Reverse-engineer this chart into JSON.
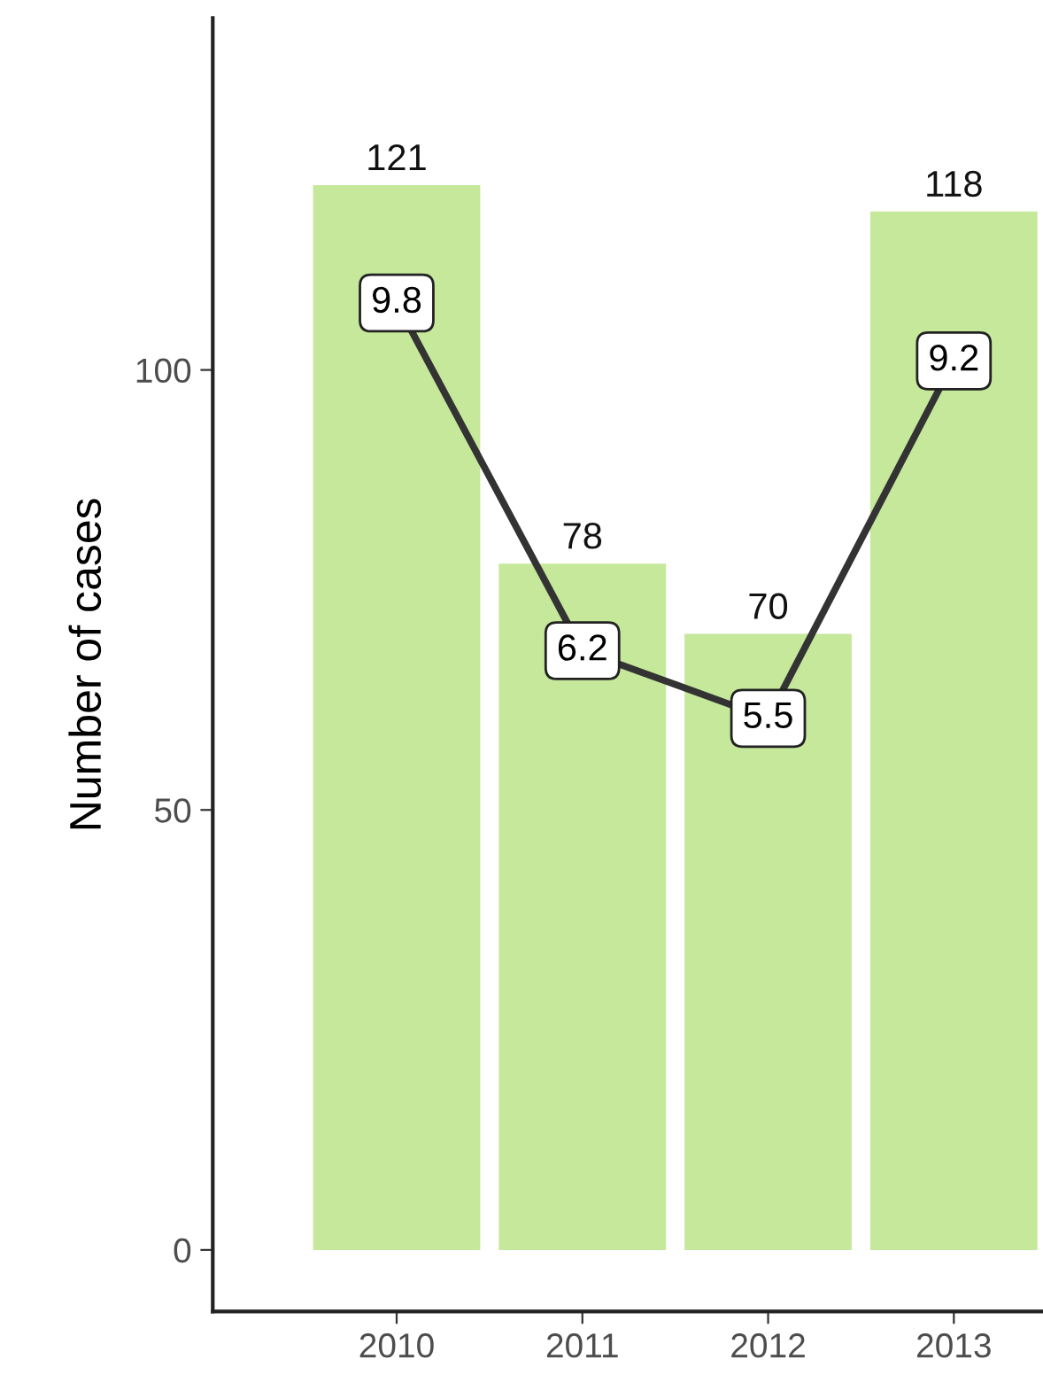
{
  "chart_data": {
    "type": "bar",
    "ylabel": "Number of cases",
    "categories": [
      "2010",
      "2011",
      "2012",
      "2013"
    ],
    "ylim": [
      -7,
      140
    ],
    "yticks": [
      0,
      50,
      100
    ],
    "y2lim": [
      -0.64,
      12.75
    ],
    "tick_labels": [
      "x",
      "y"
    ],
    "grid": false,
    "legend": false,
    "data_labels": true,
    "series": [
      {
        "color": "#c5e89a",
        "values": [
          121,
          78,
          70,
          118
        ]
      },
      {
        "type": "line",
        "axis": "y2",
        "color": "#333333",
        "marker": "square",
        "line_style": "solid",
        "values": [
          9.8,
          6.2,
          5.5,
          9.2
        ]
      }
    ]
  }
}
